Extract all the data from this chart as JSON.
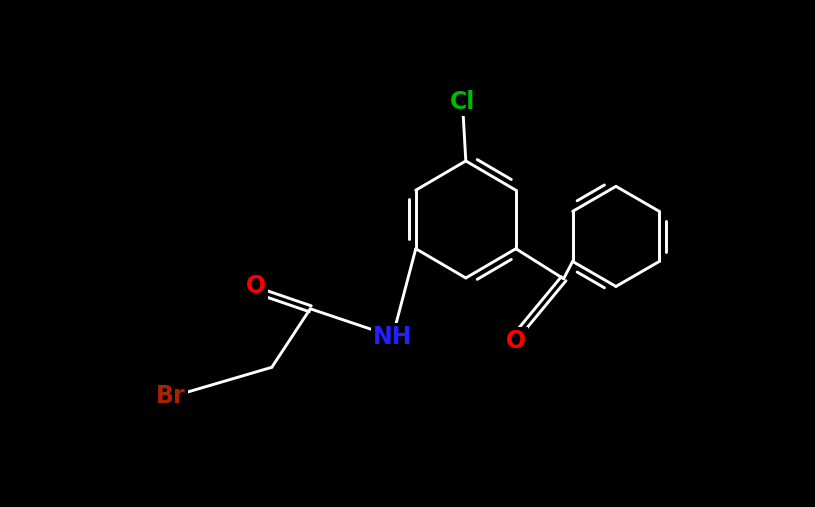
{
  "background_color": "#000000",
  "atom_colors": {
    "C": "#ffffff",
    "N": "#2222ff",
    "O": "#ff0000",
    "Cl": "#00bb00",
    "Br": "#aa2200"
  },
  "bond_color": "#ffffff",
  "lw": 2.1,
  "fs": 16,
  "fig_width": 8.15,
  "fig_height": 5.07,
  "dpi": 100,
  "xlim": [
    0,
    8.15
  ],
  "ylim": [
    0,
    5.07
  ]
}
